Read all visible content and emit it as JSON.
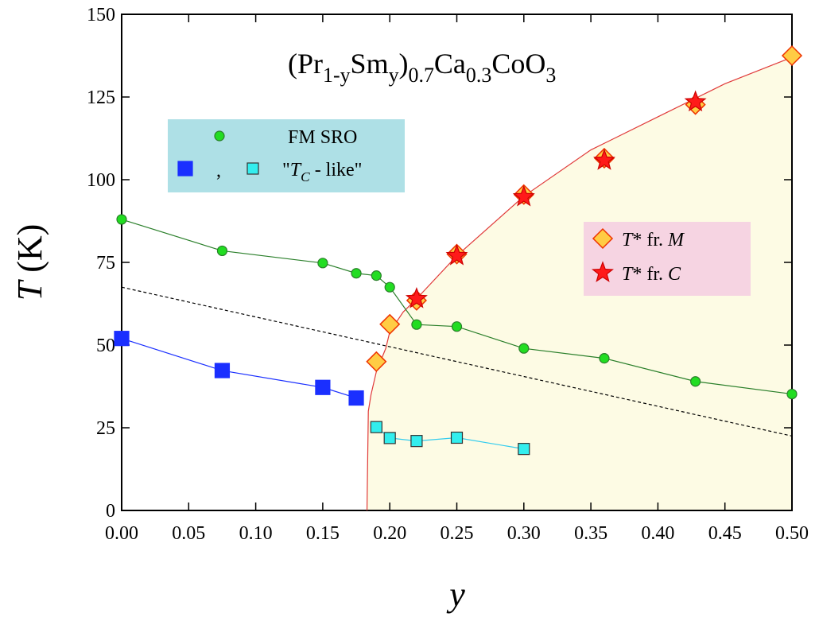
{
  "chart_data": {
    "type": "line",
    "title": [
      "(Pr",
      "1-y",
      "Sm",
      "y",
      ")",
      "0.7",
      "Ca",
      "0.3",
      "CoO",
      "3"
    ],
    "xlabel": "y",
    "ylabel": [
      "T",
      " (K)"
    ],
    "xlim": [
      0,
      0.5
    ],
    "ylim": [
      0,
      150
    ],
    "xticks": [
      {
        "value": 0,
        "label": "0.00"
      },
      {
        "value": 0.05,
        "label": "0.05"
      },
      {
        "value": 0.1,
        "label": "0.10"
      },
      {
        "value": 0.15,
        "label": "0.15"
      },
      {
        "value": 0.2,
        "label": "0.20"
      },
      {
        "value": 0.25,
        "label": "0.25"
      },
      {
        "value": 0.3,
        "label": "0.30"
      },
      {
        "value": 0.35,
        "label": "0.35"
      },
      {
        "value": 0.4,
        "label": "0.40"
      },
      {
        "value": 0.45,
        "label": "0.45"
      },
      {
        "value": 0.5,
        "label": "0.50"
      }
    ],
    "yticks": [
      0,
      25,
      50,
      75,
      100,
      125,
      150
    ],
    "series": [
      {
        "x": [
          0.183,
          0.184,
          0.186,
          0.19,
          0.197,
          0.2,
          0.21,
          0.22,
          0.25,
          0.3,
          0.35,
          0.4,
          0.45,
          0.5
        ],
        "values": [
          0,
          30,
          35,
          42,
          49,
          54,
          60,
          64,
          77,
          95,
          109,
          119,
          129,
          137
        ],
        "color": "#e03a3a",
        "fill": "#fdfbe4",
        "marker": "none",
        "line": "solid"
      },
      {
        "x": [
          0,
          0.5
        ],
        "values": [
          67.5,
          22.5
        ],
        "color": "#000000",
        "marker": "none",
        "line": "dashed"
      },
      {
        "name": "FM SRO",
        "x": [
          0,
          0.075,
          0.15,
          0.175,
          0.19,
          0.2,
          0.22,
          0.25,
          0.3,
          0.36,
          0.428,
          0.5
        ],
        "values": [
          88,
          78.5,
          74.8,
          71.7,
          71,
          67.5,
          56.2,
          55.6,
          49,
          46,
          39,
          35.2
        ],
        "color": "#2a7f2a",
        "marker_color": "#22dd22",
        "marker": "circle",
        "line": "solid"
      },
      {
        "x": [
          0,
          0.075,
          0.15,
          0.175
        ],
        "values": [
          52,
          42.3,
          37.2,
          34
        ],
        "color": "#1a2fff",
        "marker_color": "#1a2fff",
        "marker": "square",
        "line": "solid"
      },
      {
        "name": [
          "\"",
          "T",
          "C",
          " - like\""
        ],
        "x": [
          0.19,
          0.2,
          0.22,
          0.25,
          0.3
        ],
        "values": [
          25.2,
          21.9,
          21,
          22,
          18.6
        ],
        "color": "#33ccee",
        "marker_color": "#33eeee",
        "marker": "square",
        "line": "solid"
      },
      {
        "name": [
          "T",
          "* fr. ",
          "M"
        ],
        "x": [
          0.19,
          0.2,
          0.22,
          0.25,
          0.3,
          0.36,
          0.428,
          0.5
        ],
        "values": [
          45,
          56.3,
          63.5,
          77.5,
          95.5,
          106.5,
          122.7,
          137.5
        ],
        "color": "#ee3300",
        "marker_color": "#ffcc44",
        "marker": "diamond",
        "line": "none"
      },
      {
        "name": [
          "T",
          "* fr. ",
          "C"
        ],
        "x": [
          0.22,
          0.25,
          0.3,
          0.36,
          0.428
        ],
        "values": [
          64,
          77,
          94.8,
          105.8,
          123.5
        ],
        "color": "#ee0000",
        "marker_color": "#ff1a1a",
        "marker": "star",
        "line": "none"
      }
    ],
    "legend_colors": [
      "#aee0e6",
      "#f6d4e2"
    ]
  }
}
